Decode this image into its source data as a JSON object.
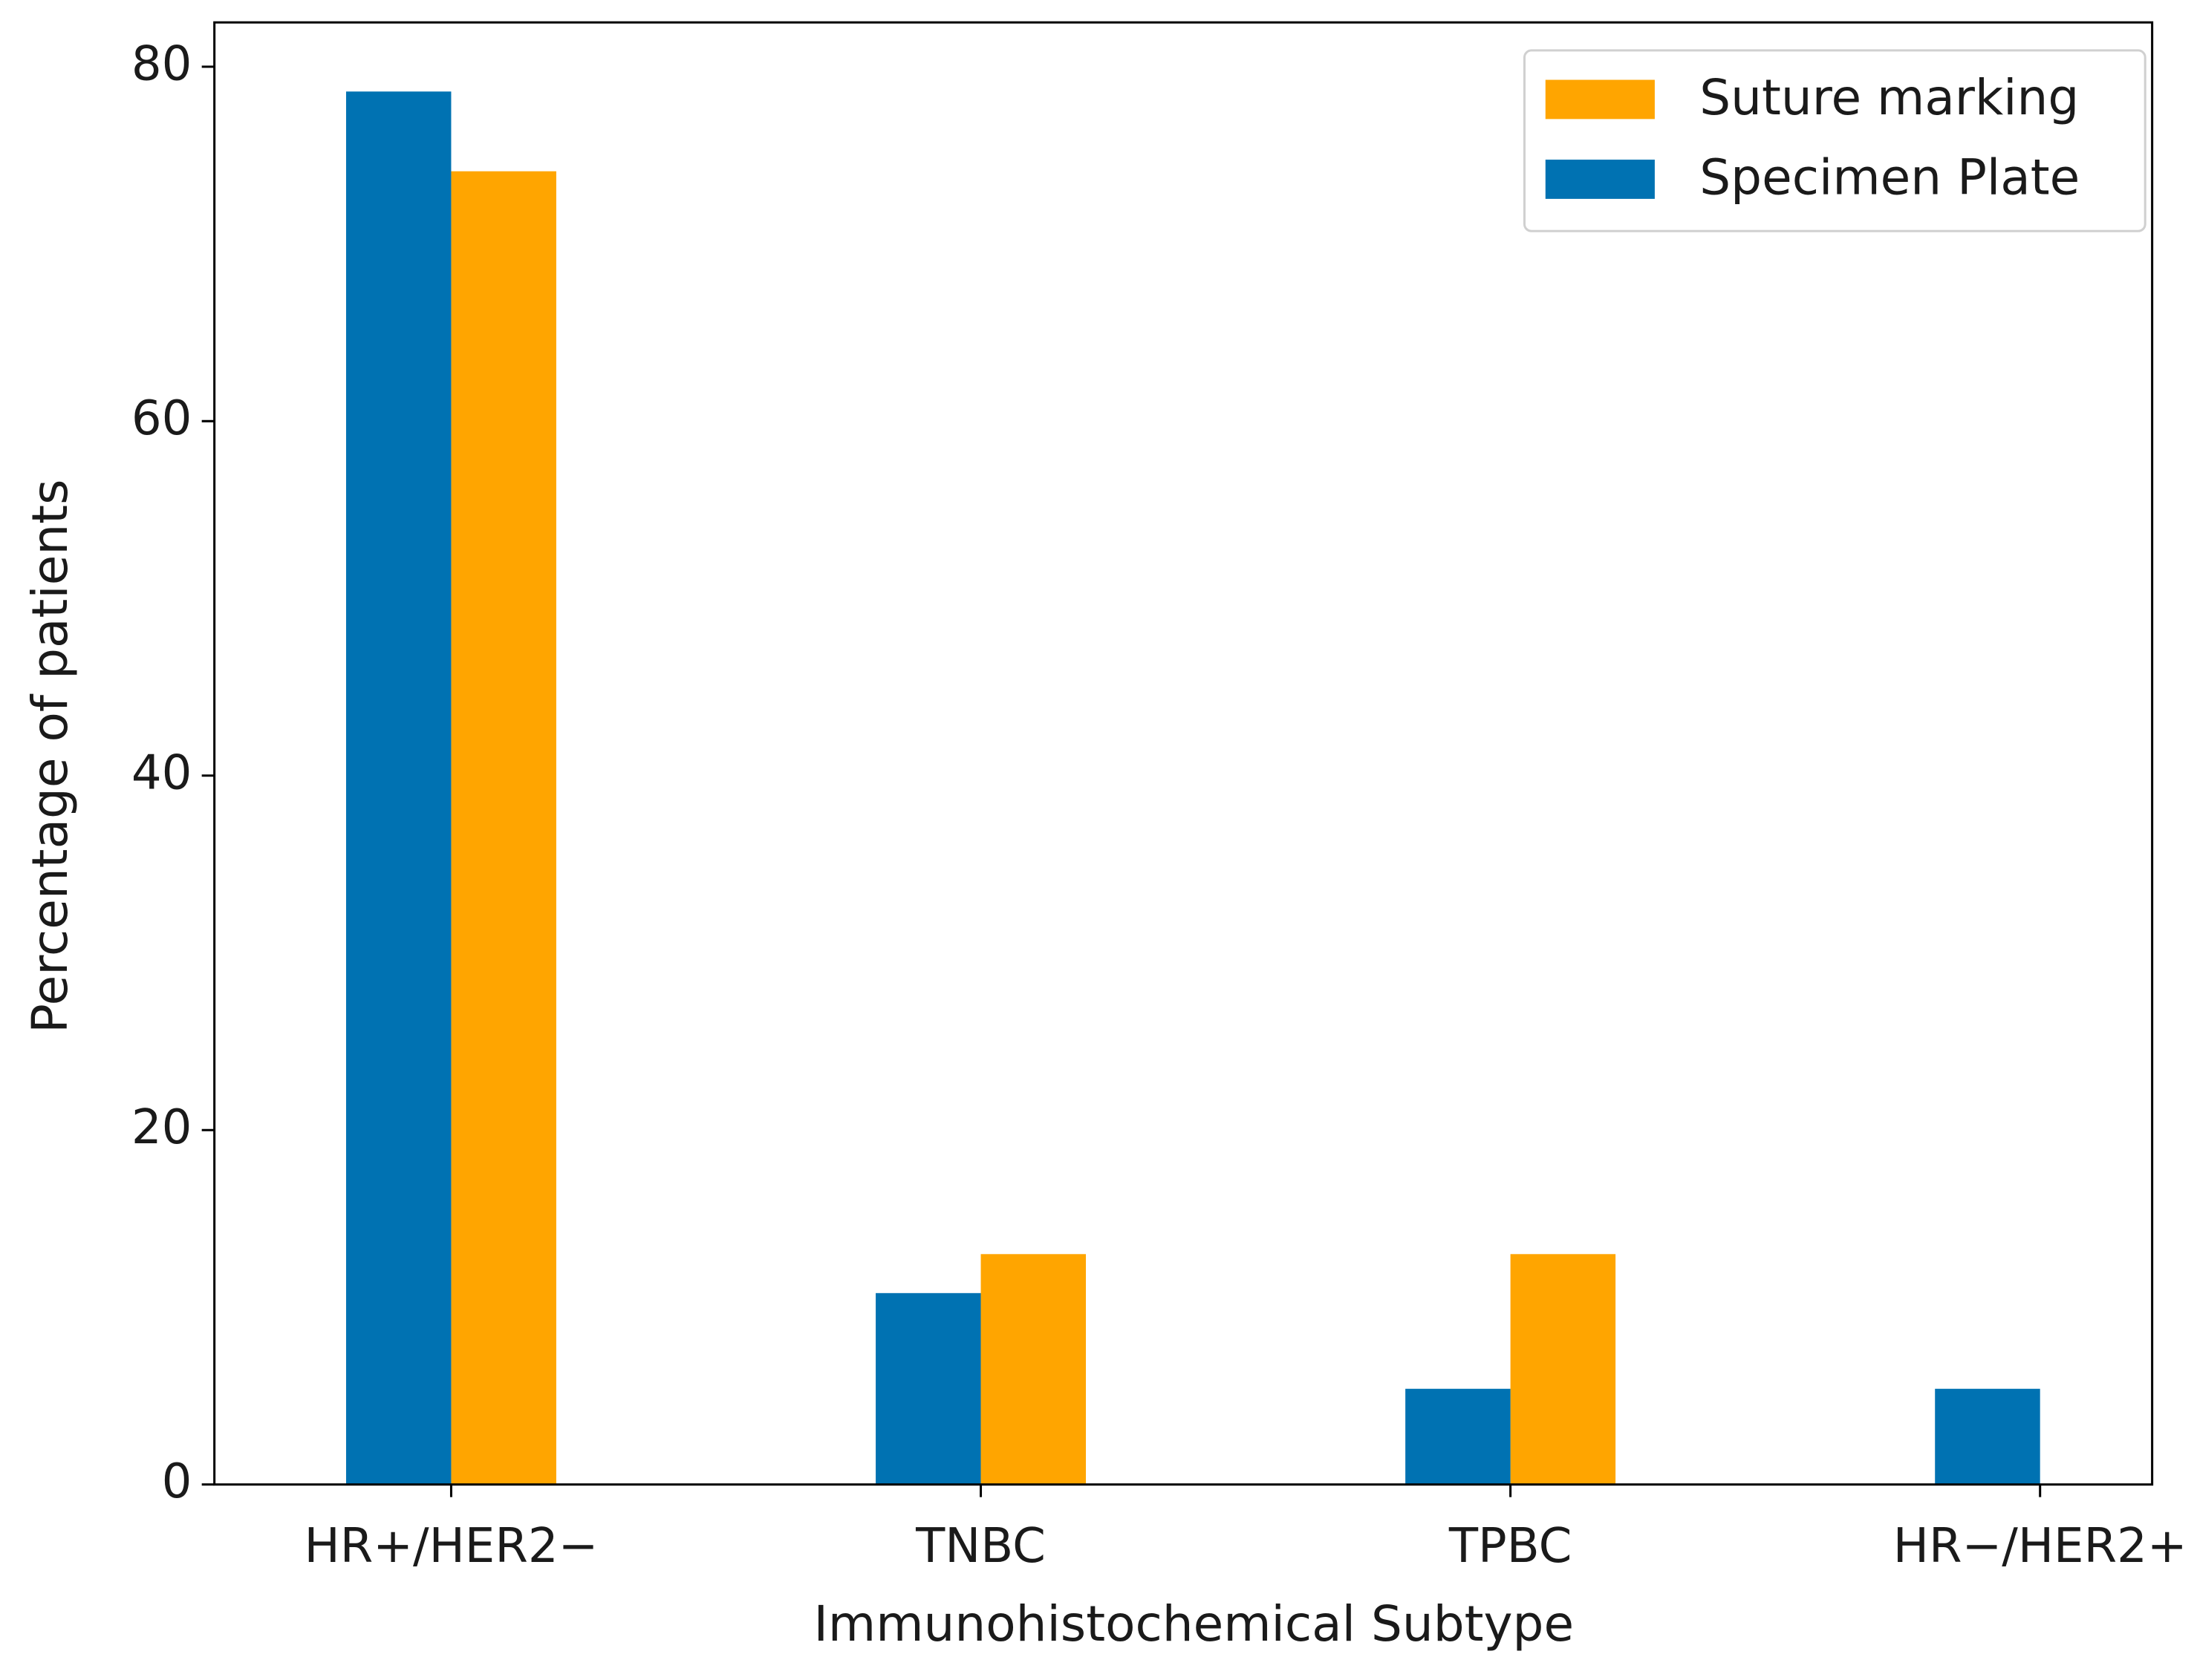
{
  "chart_data": {
    "type": "bar",
    "x_label": "Immunohistochemical Subtype",
    "y_label": "Percentage of patients",
    "categories": [
      "HR+/HER2−",
      "TNBC",
      "TPBC",
      "HR−/HER2+"
    ],
    "series": [
      {
        "name": "Suture marking",
        "color": "#ffa500",
        "values": [
          74.1,
          13.0,
          13.0,
          0
        ]
      },
      {
        "name": "Specimen Plate",
        "color": "#0072b2",
        "values": [
          78.6,
          10.8,
          5.4,
          5.4
        ]
      }
    ],
    "ylim": [
      0,
      82.5
    ],
    "yticks": [
      0,
      20,
      40,
      60,
      80
    ],
    "legend": "upper right"
  }
}
